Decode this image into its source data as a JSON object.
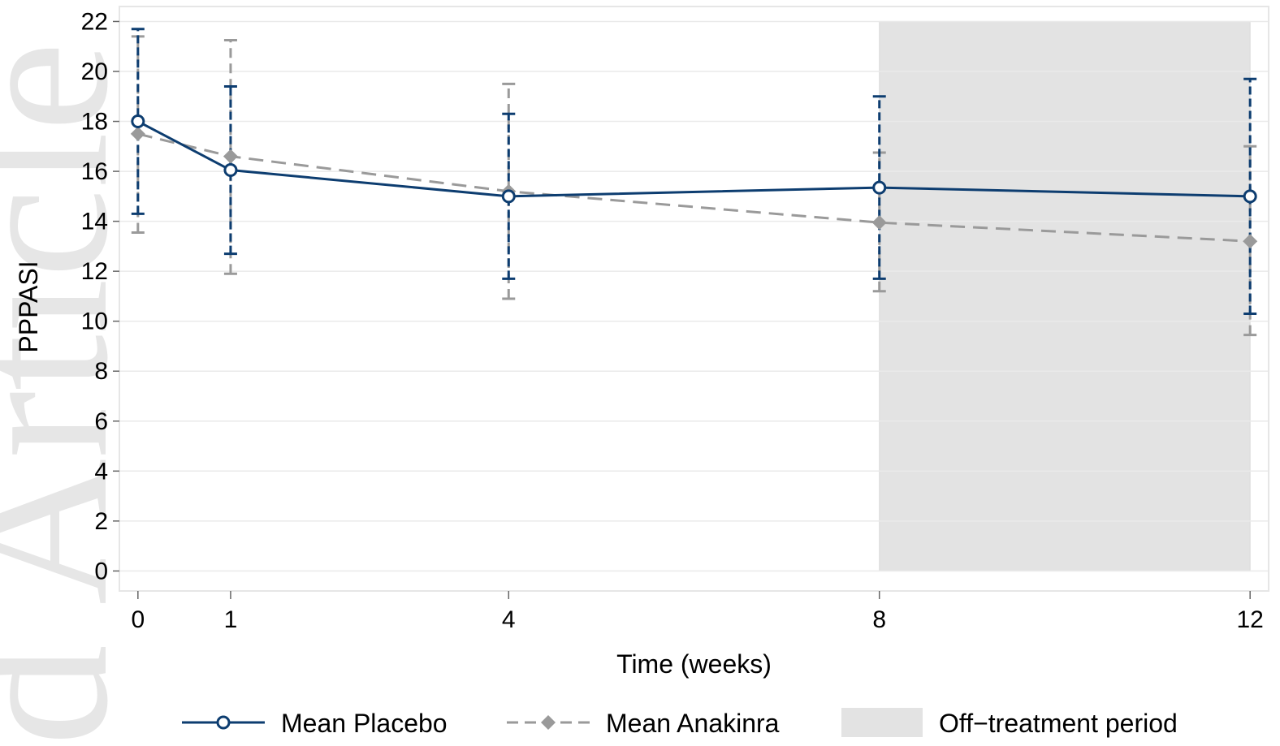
{
  "watermark": {
    "text": "d Article"
  },
  "chart_data": {
    "type": "line",
    "xlabel": "Time (weeks)",
    "ylabel": "PPPASI",
    "xlim": [
      -0.2,
      12.2
    ],
    "ylim": [
      -0.8,
      22.6
    ],
    "x_ticks": [
      0,
      1,
      4,
      8,
      12
    ],
    "y_ticks": [
      0,
      2,
      4,
      6,
      8,
      10,
      12,
      14,
      16,
      18,
      20,
      22
    ],
    "grid": true,
    "shaded_region": {
      "label": "Off−treatment period",
      "x_start": 8,
      "x_end": 12,
      "y_start": 0,
      "y_end": 22
    },
    "series": [
      {
        "name": "Mean Placebo",
        "color": "#0d3d70",
        "line_style": "solid",
        "marker": "hollow-circle",
        "x": [
          0,
          1,
          4,
          8,
          12
        ],
        "y": [
          18.0,
          16.05,
          15.0,
          15.35,
          15.0
        ],
        "err_low": [
          14.3,
          12.7,
          11.7,
          11.7,
          10.3
        ],
        "err_high": [
          21.7,
          19.4,
          18.3,
          19.0,
          19.7
        ]
      },
      {
        "name": "Mean Anakinra",
        "color": "#9a9a9a",
        "line_style": "dashed",
        "marker": "diamond",
        "x": [
          0,
          1,
          4,
          8,
          12
        ],
        "y": [
          17.5,
          16.6,
          15.2,
          13.95,
          13.2
        ],
        "err_low": [
          13.55,
          11.9,
          10.9,
          11.2,
          9.45
        ],
        "err_high": [
          21.4,
          21.25,
          19.5,
          16.75,
          17.0
        ]
      }
    ],
    "legend": {
      "placement": "bottom"
    }
  }
}
